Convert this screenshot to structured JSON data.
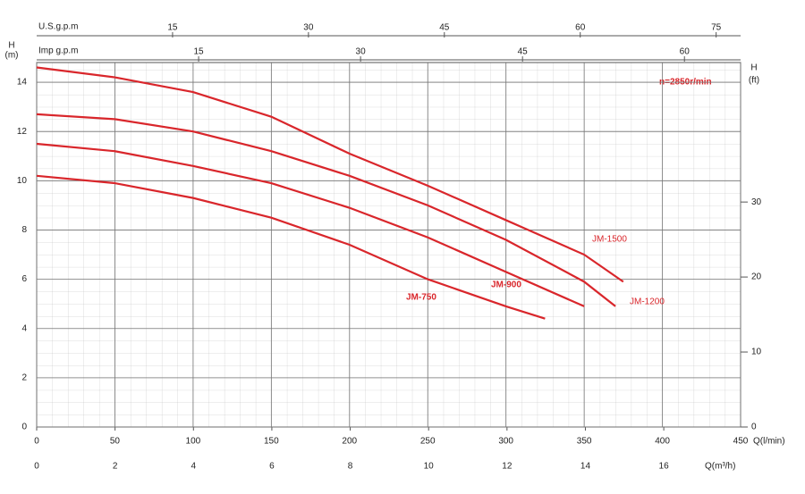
{
  "chart_data": {
    "type": "line",
    "annotation": "n=2850r/min",
    "xlabel": "Q(l/min)",
    "xlim": [
      0,
      450
    ],
    "xticks": [
      0,
      50,
      100,
      150,
      200,
      250,
      300,
      350,
      400,
      450
    ],
    "x2label": "Q(m³/h)",
    "x2lim": [
      0,
      17.96
    ],
    "x2ticks": [
      0,
      2,
      4,
      6,
      8,
      10,
      12,
      14,
      16
    ],
    "top_axes": [
      {
        "label": "U.S.g.p.m",
        "lim": [
          0,
          77.7
        ],
        "ticks": [
          15,
          30,
          45,
          60,
          75
        ]
      },
      {
        "label": "Imp g.p.m",
        "lim": [
          0,
          65.2
        ],
        "ticks": [
          15,
          30,
          45,
          60
        ]
      }
    ],
    "ylabel": [
      "H",
      "(m)"
    ],
    "ylim": [
      0,
      14.8
    ],
    "yticks": [
      0,
      2,
      4,
      6,
      8,
      10,
      12,
      14
    ],
    "y2label": [
      "H",
      "(ft)"
    ],
    "y2lim": [
      0,
      48.6
    ],
    "y2ticks": [
      0,
      10,
      20,
      30
    ],
    "grid": true,
    "series": [
      {
        "name": "JM-1500",
        "color": "#d9262b",
        "x": [
          0,
          50,
          100,
          150,
          200,
          250,
          300,
          350,
          375
        ],
        "values": [
          14.6,
          14.2,
          13.6,
          12.6,
          11.1,
          9.8,
          8.4,
          7.0,
          5.9
        ]
      },
      {
        "name": "JM-1200",
        "color": "#d9262b",
        "x": [
          0,
          50,
          100,
          150,
          200,
          250,
          300,
          350,
          370
        ],
        "values": [
          12.7,
          12.5,
          12.0,
          11.2,
          10.2,
          9.0,
          7.6,
          5.9,
          4.9
        ]
      },
      {
        "name": "JM-900",
        "color": "#d9262b",
        "x": [
          0,
          50,
          100,
          150,
          200,
          250,
          300,
          350
        ],
        "values": [
          11.5,
          11.2,
          10.6,
          9.9,
          8.9,
          7.7,
          6.3,
          4.9
        ]
      },
      {
        "name": "JM-750",
        "color": "#d9262b",
        "x": [
          0,
          50,
          100,
          150,
          200,
          250,
          300,
          325
        ],
        "values": [
          10.2,
          9.9,
          9.3,
          8.5,
          7.4,
          6.0,
          4.9,
          4.4
        ]
      }
    ]
  }
}
